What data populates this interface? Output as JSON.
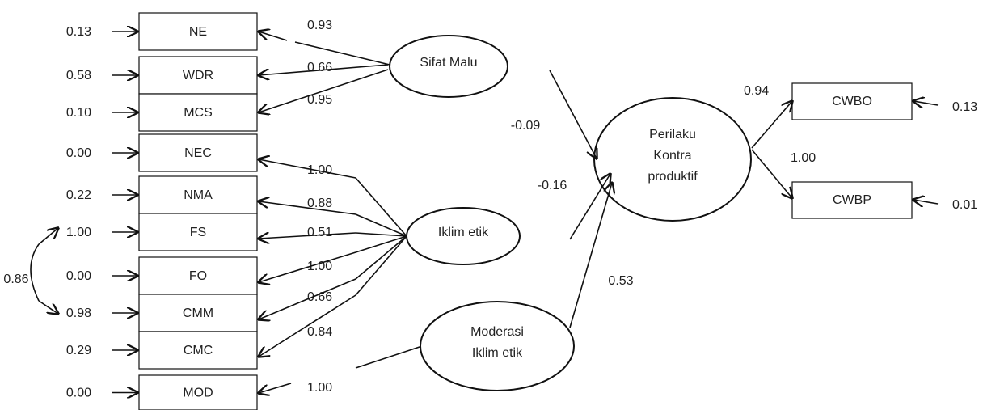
{
  "indicators": [
    {
      "label": "NE",
      "error": "0.13",
      "loading": "0.93"
    },
    {
      "label": "WDR",
      "error": "0.58",
      "loading": "0.66"
    },
    {
      "label": "MCS",
      "error": "0.10",
      "loading": "0.95"
    },
    {
      "label": "NEC",
      "error": "0.00",
      "loading": "1.00"
    },
    {
      "label": "NMA",
      "error": "0.22",
      "loading": "0.88"
    },
    {
      "label": "FS",
      "error": "1.00",
      "loading": "0.51"
    },
    {
      "label": "FO",
      "error": "0.00",
      "loading": "1.00"
    },
    {
      "label": "CMM",
      "error": "0.98",
      "loading": "0.66"
    },
    {
      "label": "CMC",
      "error": "0.29",
      "loading": "0.84"
    },
    {
      "label": "MOD",
      "error": "0.00",
      "loading": "1.00"
    }
  ],
  "covariance": "0.86",
  "latents": [
    {
      "lines": [
        "Sifat Malu"
      ]
    },
    {
      "lines": [
        "Iklim etik"
      ]
    },
    {
      "lines": [
        "Moderasi",
        "Iklim etik"
      ]
    },
    {
      "lines": [
        "Perilaku",
        "Kontra",
        "produktif"
      ]
    }
  ],
  "paths": [
    "-0.09",
    "-0.16",
    "0.53"
  ],
  "outcomes": [
    {
      "label": "CWBO",
      "error": "0.13",
      "loading": "0.94"
    },
    {
      "label": "CWBP",
      "error": "0.01",
      "loading": "1.00"
    }
  ]
}
